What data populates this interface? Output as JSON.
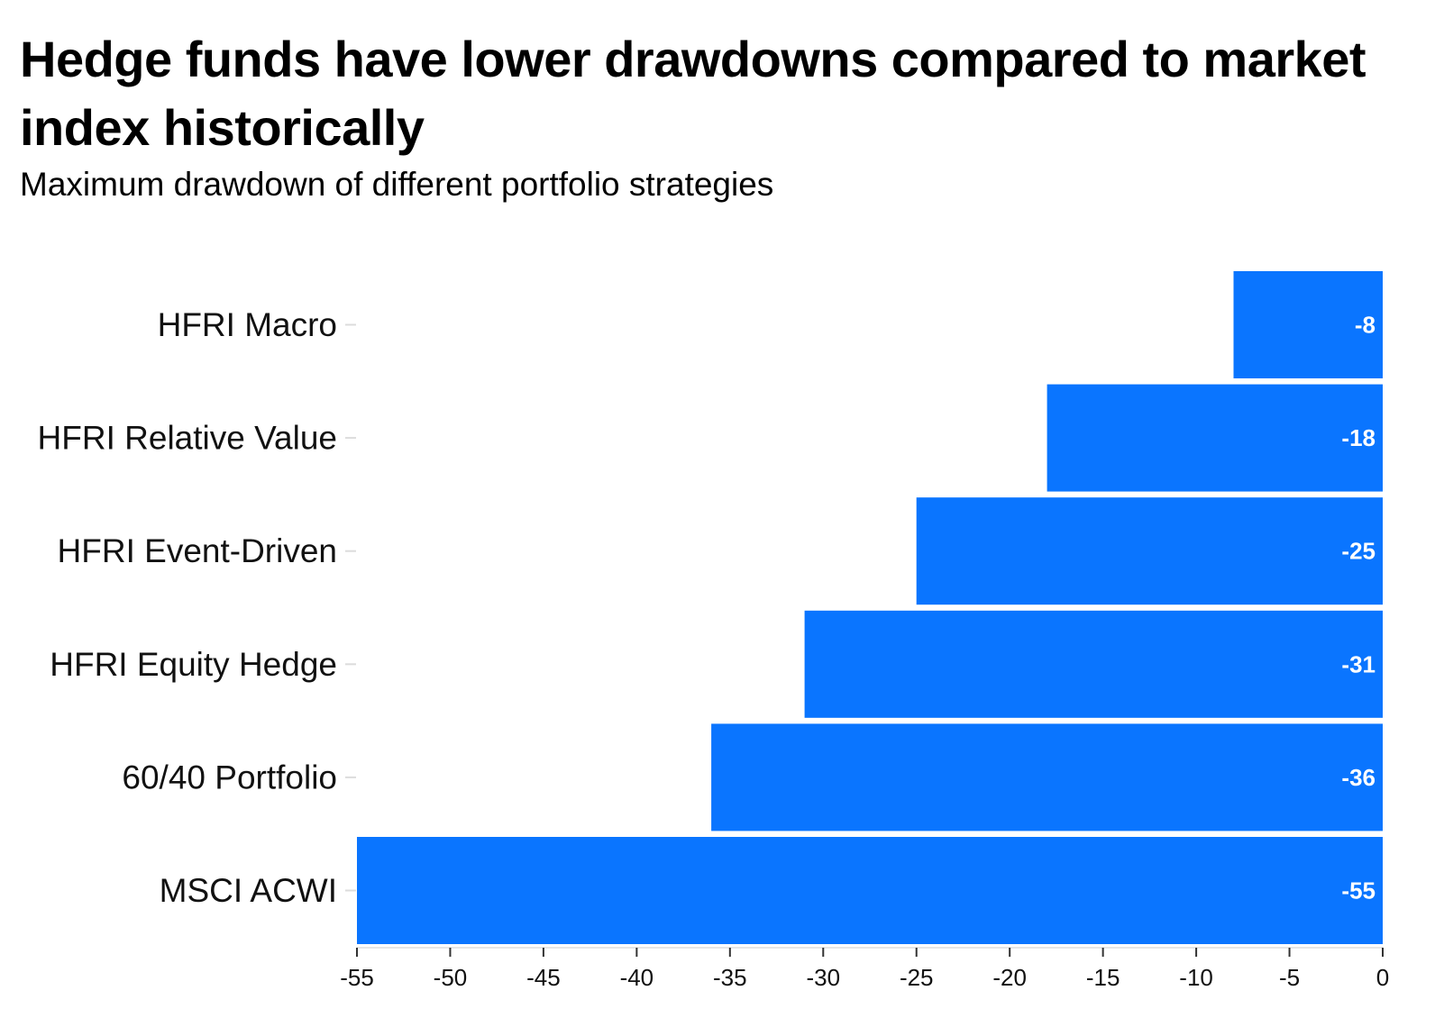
{
  "chart_data": {
    "type": "bar",
    "orientation": "horizontal",
    "title": "Hedge funds have lower drawdowns compared to market index historically",
    "subtitle": "Maximum drawdown of different portfolio strategies",
    "categories": [
      "HFRI Macro",
      "HFRI Relative Value",
      "HFRI Event-Driven",
      "HFRI Equity Hedge",
      "60/40 Portfolio",
      "MSCI ACWI"
    ],
    "values": [
      -8,
      -18,
      -25,
      -31,
      -36,
      -55
    ],
    "value_labels": [
      "-8",
      "-18",
      "-25",
      "-31",
      "-36",
      "-55"
    ],
    "xlim": [
      -55,
      0
    ],
    "x_ticks": [
      -55,
      -50,
      -45,
      -40,
      -35,
      -30,
      -25,
      -20,
      -15,
      -10,
      -5,
      0
    ],
    "x_tick_labels": [
      "-55",
      "-50",
      "-45",
      "-40",
      "-35",
      "-30",
      "-25",
      "-20",
      "-15",
      "-10",
      "-5",
      "0"
    ],
    "grid": false,
    "bar_color": "#0A75FF",
    "value_label_color": "#FFFFFF"
  }
}
